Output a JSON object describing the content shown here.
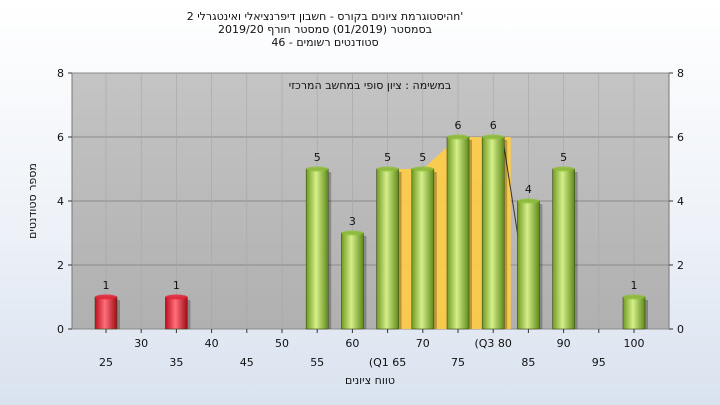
{
  "chart_data": {
    "type": "bar",
    "title_lines": [
      "היסטוגרמת ציונים בקורס - חשבון דיפרנציאלי ואינטגרלי 2n'",
      "בסמסטר  (01/2019)  סמסטר חורף 2019/20",
      "סטודנטים רשומים - 46"
    ],
    "annotation": "במשימה : ציון סופי במחשב המרכזי",
    "xlabel": "טווח ציונים",
    "ylabel": "מספר סטודנטים",
    "ylim": [
      0,
      8
    ],
    "yticks": [
      0,
      2,
      4,
      6,
      8
    ],
    "grid": true,
    "categories": [
      "25",
      "30",
      "35",
      "40",
      "45",
      "50",
      "55",
      "60",
      "65",
      "70",
      "75",
      "80",
      "85",
      "90",
      "95",
      "100"
    ],
    "x_tick_labels": [
      "25",
      "30",
      "35",
      "40",
      "45",
      "50",
      "55",
      "60",
      "(Q1 65",
      "70",
      "75",
      "(Q3 80",
      "85",
      "90",
      "95",
      "100"
    ],
    "values": [
      1,
      0,
      1,
      0,
      0,
      0,
      5,
      3,
      5,
      5,
      6,
      6,
      4,
      5,
      0,
      1
    ],
    "data_labels": [
      "1",
      "",
      "1",
      "",
      "",
      "",
      "5",
      "3",
      "5",
      "5",
      "6",
      "6",
      "4",
      "5",
      "",
      "1"
    ],
    "bar_colors": [
      "#e8243a",
      "",
      "#e8243a",
      "",
      "",
      "",
      "#8fbe3a",
      "#8fbe3a",
      "#8fbe3a",
      "#8fbe3a",
      "#8fbe3a",
      "#8fbe3a",
      "#8fbe3a",
      "#8fbe3a",
      "",
      "#8fbe3a"
    ],
    "iqr_band": {
      "from_category": "65",
      "to_category": "80",
      "color": "#ffcc44"
    },
    "plot_background": "#b9b9b9"
  }
}
